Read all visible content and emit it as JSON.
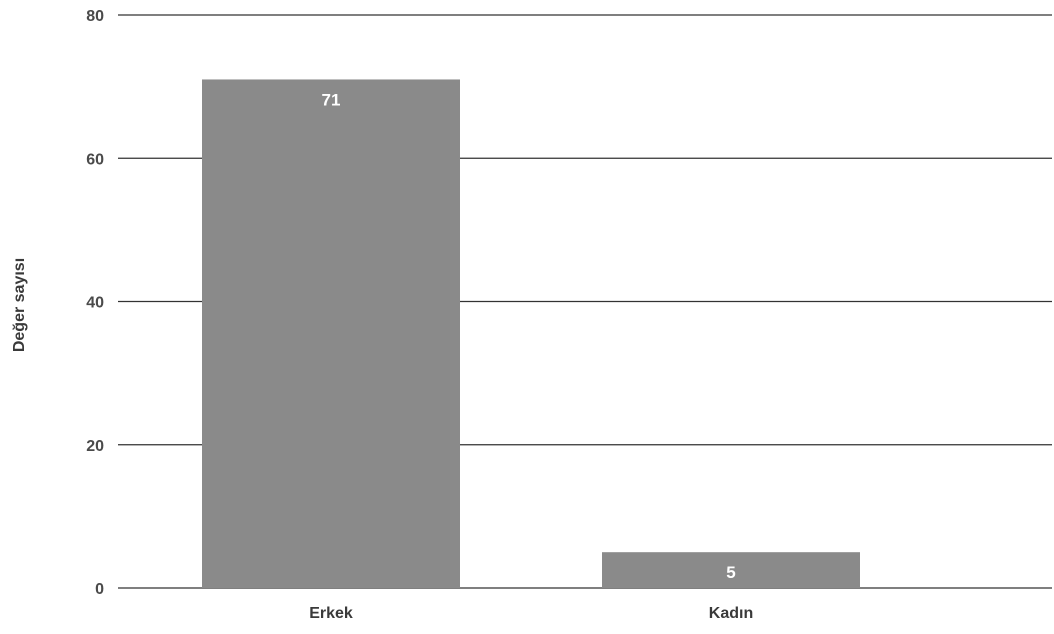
{
  "chart_data": {
    "type": "bar",
    "title": "",
    "xlabel": "",
    "ylabel": "Değer sayısı",
    "categories": [
      "Erkek",
      "Kadın"
    ],
    "values": [
      71,
      5
    ],
    "data_labels": [
      "71",
      "5"
    ],
    "ylim": [
      0,
      80
    ],
    "yticks": [
      0,
      20,
      40,
      60,
      80
    ],
    "ytick_labels": [
      "0",
      "20",
      "40",
      "60",
      "80"
    ],
    "grid": true,
    "legend": "none",
    "bar_color": "#8a8a8a",
    "data_label_color": "#ffffff"
  }
}
